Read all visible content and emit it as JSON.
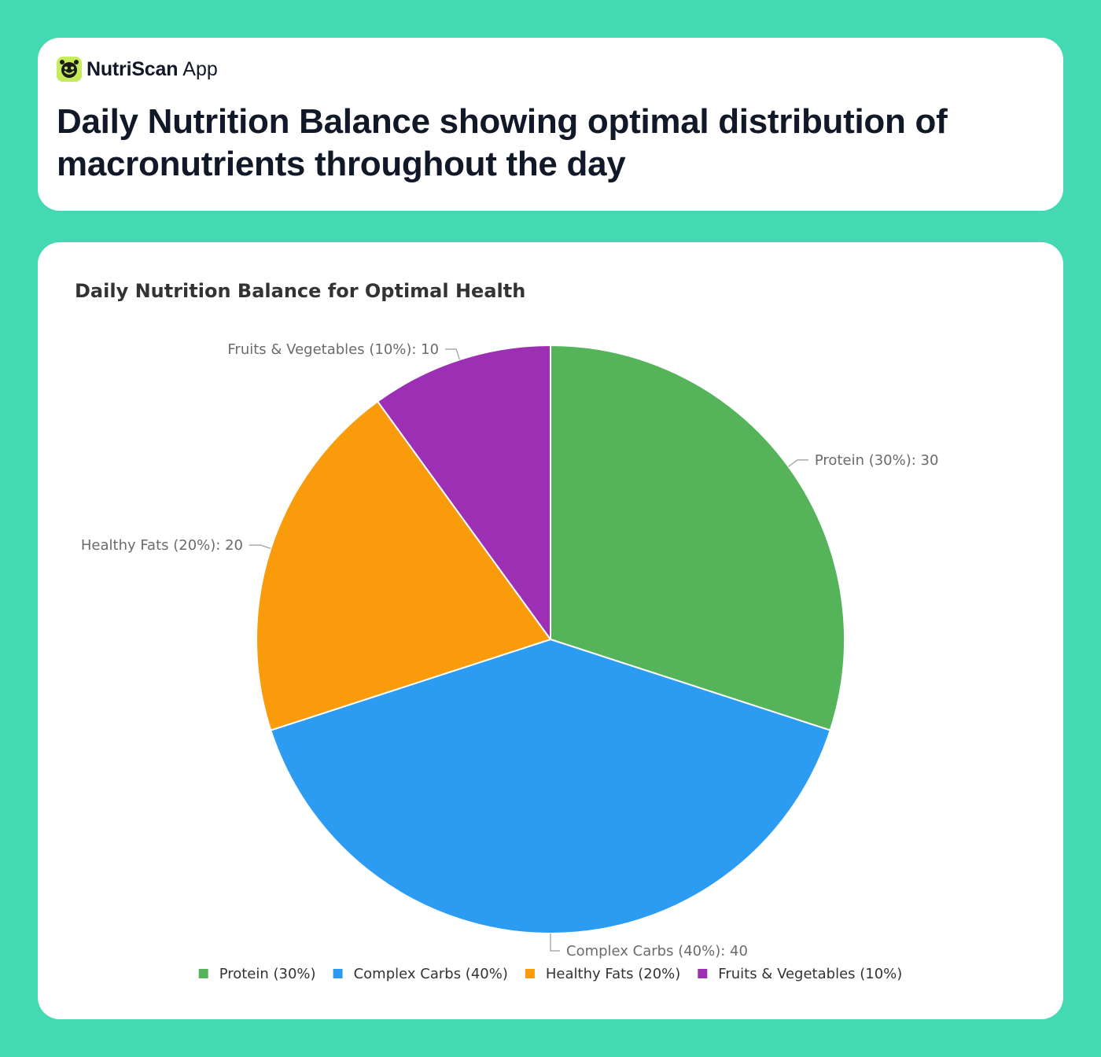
{
  "brand": {
    "name": "NutriScan",
    "suffix": "App",
    "logo_icon": "smiley-face-icon",
    "logo_color": "#c7ec5b"
  },
  "headline": "Daily Nutrition Balance showing optimal distribution of macronutrients throughout the day",
  "colors": {
    "background": "#45d9b3",
    "card": "#ffffff"
  },
  "chart_data": {
    "type": "pie",
    "title": "Daily Nutrition Balance for Optimal Health",
    "legend_position": "bottom",
    "categories": [
      "Protein (30%)",
      "Complex Carbs (40%)",
      "Healthy Fats (20%)",
      "Fruits & Vegetables (10%)"
    ],
    "values": [
      30,
      40,
      20,
      10
    ],
    "colors": [
      "#55b35a",
      "#2b9cf2",
      "#fa9b0c",
      "#9c2fb3"
    ],
    "data_labels": [
      "Protein (30%): 30",
      "Complex Carbs (40%): 40",
      "Healthy Fats (20%): 20",
      "Fruits & Vegetables (10%): 10"
    ]
  }
}
